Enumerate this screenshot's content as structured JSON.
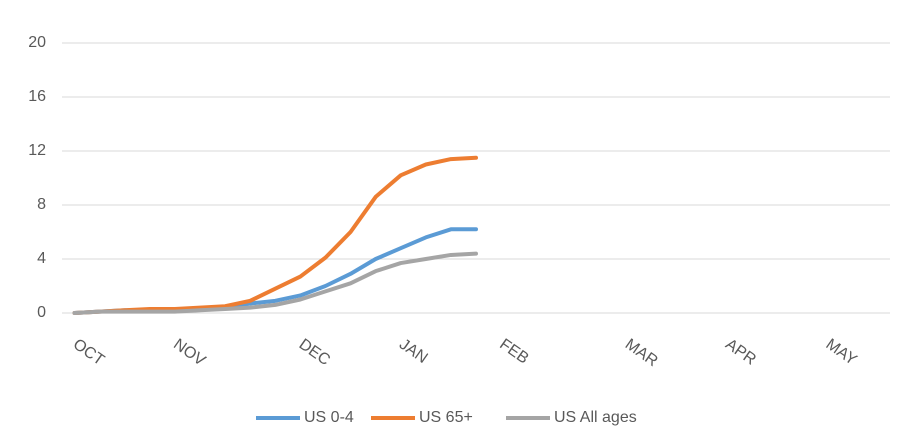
{
  "chart_data": {
    "type": "line",
    "categories": [
      "OCT",
      null,
      null,
      null,
      "NOV",
      null,
      null,
      null,
      null,
      "DEC",
      null,
      null,
      null,
      "JAN",
      null,
      null,
      null,
      "FEB",
      null,
      null,
      null,
      null,
      "MAR",
      null,
      null,
      null,
      "APR",
      null,
      null,
      null,
      "MAY",
      null,
      null
    ],
    "series": [
      {
        "name": "US 0-4",
        "color": "#5b9bd5",
        "values": [
          0,
          0.1,
          0.2,
          0.2,
          0.2,
          0.3,
          0.4,
          0.7,
          0.9,
          1.3,
          2.0,
          2.9,
          4.0,
          4.8,
          5.6,
          6.2,
          6.2,
          null,
          null,
          null,
          null,
          null,
          null,
          null,
          null,
          null,
          null,
          null,
          null,
          null,
          null,
          null,
          null
        ]
      },
      {
        "name": "US 65+",
        "color": "#ed7d31",
        "values": [
          0,
          0.1,
          0.2,
          0.3,
          0.3,
          0.4,
          0.5,
          0.9,
          1.8,
          2.7,
          4.1,
          6.0,
          8.6,
          10.2,
          11.0,
          11.4,
          11.5,
          null,
          null,
          null,
          null,
          null,
          null,
          null,
          null,
          null,
          null,
          null,
          null,
          null,
          null,
          null,
          null
        ]
      },
      {
        "name": "US All ages",
        "color": "#a5a5a5",
        "values": [
          0,
          0.1,
          0.1,
          0.1,
          0.1,
          0.2,
          0.3,
          0.4,
          0.6,
          1.0,
          1.6,
          2.2,
          3.1,
          3.7,
          4.0,
          4.3,
          4.4,
          null,
          null,
          null,
          null,
          null,
          null,
          null,
          null,
          null,
          null,
          null,
          null,
          null,
          null,
          null,
          null
        ]
      }
    ],
    "ylim": [
      0,
      20
    ],
    "yticks": [
      0,
      4,
      8,
      12,
      16,
      20
    ],
    "grid": true,
    "legend": "bottom"
  }
}
